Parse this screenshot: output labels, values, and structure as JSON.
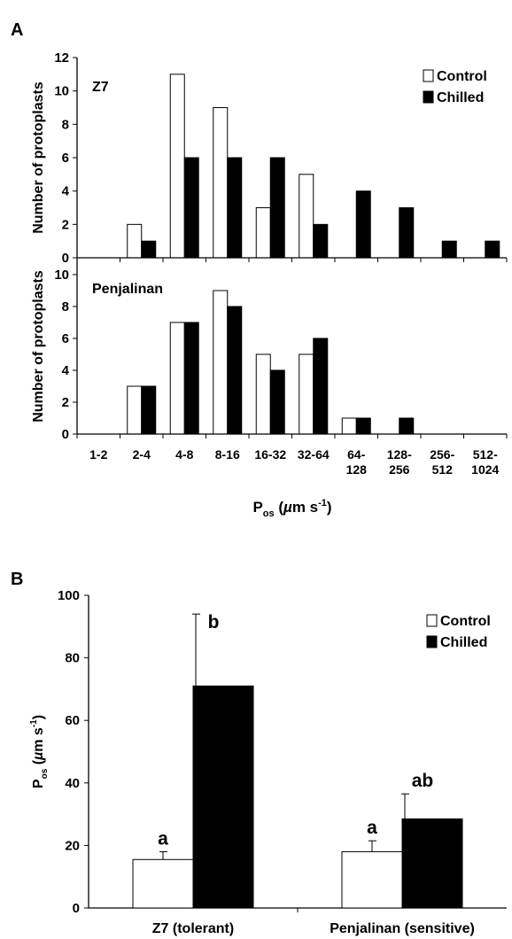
{
  "chart_data": [
    {
      "type": "bar",
      "panel_label": "A",
      "subplot_label": "Z7",
      "ylabel": "Number of protoplasts",
      "ylim": [
        0,
        12
      ],
      "yticks": [
        0,
        2,
        4,
        6,
        8,
        10,
        12
      ],
      "categories": [
        "1-2",
        "2-4",
        "4-8",
        "8-16",
        "16-32",
        "32-64",
        "64-128",
        "128-256",
        "256-512",
        "512-1024"
      ],
      "series": [
        {
          "name": "Control",
          "color": "#ffffff",
          "values": [
            0,
            2,
            11,
            9,
            3,
            5,
            0,
            0,
            0,
            0
          ]
        },
        {
          "name": "Chilled",
          "color": "#000000",
          "values": [
            0,
            1,
            6,
            6,
            6,
            2,
            4,
            3,
            1,
            1
          ]
        }
      ],
      "legend": "top-right"
    },
    {
      "type": "bar",
      "subplot_label": "Penjalinan",
      "ylabel": "Number of protoplasts",
      "ylim": [
        0,
        11
      ],
      "yticks": [
        0,
        2,
        4,
        6,
        8,
        10
      ],
      "categories": [
        "1-2",
        "2-4",
        "4-8",
        "8-16",
        "16-32",
        "32-64",
        "64-128",
        "128-256",
        "256-512",
        "512-1024"
      ],
      "category_lines": [
        [
          "1-2"
        ],
        [
          "2-4"
        ],
        [
          "4-8"
        ],
        [
          "8-16"
        ],
        [
          "16-32"
        ],
        [
          "32-64"
        ],
        [
          "64-",
          "128"
        ],
        [
          "128-",
          "256"
        ],
        [
          "256-",
          "512"
        ],
        [
          "512-",
          "1024"
        ]
      ],
      "xlabel": {
        "main": "P",
        "sub": "os",
        "paren_open": " (",
        "mu": "µ",
        "unit": "m s",
        "sup": "-1",
        "paren_close": ")"
      },
      "series": [
        {
          "name": "Control",
          "color": "#ffffff",
          "values": [
            0,
            3,
            7,
            9,
            5,
            5,
            1,
            0,
            0,
            0
          ]
        },
        {
          "name": "Chilled",
          "color": "#000000",
          "values": [
            0,
            3,
            7,
            8,
            4,
            6,
            1,
            1,
            0,
            0
          ]
        }
      ]
    },
    {
      "type": "bar",
      "panel_label": "B",
      "ylabel": {
        "main": "P",
        "sub": "os",
        "paren_open": " (",
        "mu": "µ",
        "unit": "m s",
        "sup": "-1",
        "paren_close": ")"
      },
      "ylim": [
        0,
        100
      ],
      "yticks": [
        0,
        20,
        40,
        60,
        80,
        100
      ],
      "categories": [
        "Z7 (tolerant)",
        "Penjalinan (sensitive)"
      ],
      "series": [
        {
          "name": "Control",
          "color": "#ffffff",
          "values": [
            15.5,
            18
          ],
          "errors": [
            2.5,
            3.5
          ],
          "labels": [
            "a",
            "a"
          ]
        },
        {
          "name": "Chilled",
          "color": "#000000",
          "values": [
            71,
            28.5
          ],
          "errors": [
            23,
            8
          ],
          "labels": [
            "b",
            "ab"
          ]
        }
      ],
      "legend": "top-right"
    }
  ]
}
